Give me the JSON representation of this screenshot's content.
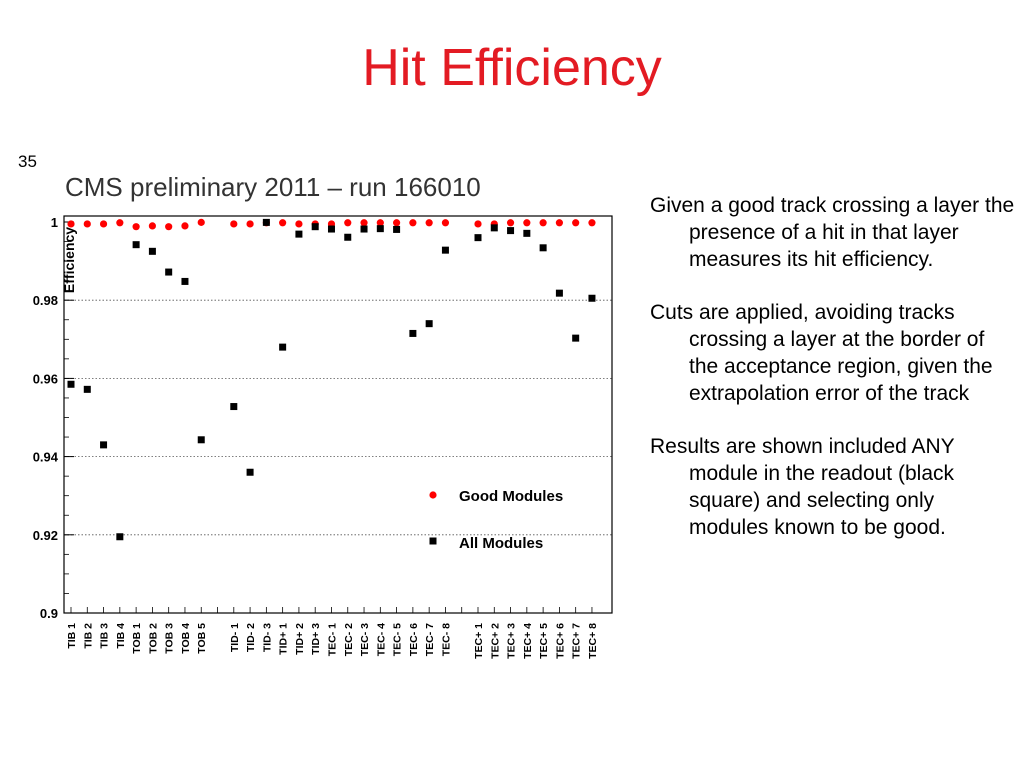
{
  "slide": {
    "title": "Hit Efficiency",
    "page_number": "35"
  },
  "bullets": [
    "Given a good track crossing a layer the presence of a hit in that layer measures its hit efficiency.",
    "Cuts are applied, avoiding tracks crossing a layer at the border of the acceptance region, given the extrapolation error of the track",
    "Results are shown included ANY module in the readout (black square) and selecting only modules known to be good."
  ],
  "chart_data": {
    "type": "scatter",
    "title": "CMS preliminary 2011 – run 166010",
    "ylabel": "Efficiency",
    "xlabel": "",
    "ylim": [
      0.9,
      1.0
    ],
    "yticks": [
      "1",
      "0.98",
      "0.96",
      "0.94",
      "0.92",
      "0.9"
    ],
    "ytick_values": [
      1.0,
      0.98,
      0.96,
      0.94,
      0.92,
      0.9
    ],
    "grid": true,
    "legend_position": "bottom-right",
    "categories": [
      "TIB 1",
      "TIB 2",
      "TIB 3",
      "TIB 4",
      "TOB 1",
      "TOB 2",
      "TOB 3",
      "TOB 4",
      "TOB 5",
      "",
      "TID- 1",
      "TID- 2",
      "TID- 3",
      "TID+ 1",
      "TID+ 2",
      "TID+ 3",
      "TEC- 1",
      "TEC- 2",
      "TEC- 3",
      "TEC- 4",
      "TEC- 5",
      "TEC- 6",
      "TEC- 7",
      "TEC- 8",
      "",
      "TEC+ 1",
      "TEC+ 2",
      "TEC+ 3",
      "TEC+ 4",
      "TEC+ 5",
      "TEC+ 6",
      "TEC+ 7",
      "TEC+ 8"
    ],
    "series": [
      {
        "name": "Good Modules",
        "marker": "circle",
        "color": "#ff0000",
        "values": [
          0.9995,
          0.9995,
          0.9995,
          0.9998,
          0.9988,
          0.999,
          0.9988,
          0.999,
          0.9999,
          null,
          0.9995,
          0.9995,
          0.9998,
          0.9998,
          0.9995,
          0.9995,
          0.9995,
          0.9998,
          0.9998,
          0.9998,
          0.9998,
          0.9998,
          0.9998,
          0.9998,
          null,
          0.9995,
          0.9995,
          0.9998,
          0.9998,
          0.9998,
          0.9998,
          0.9998,
          0.9998
        ]
      },
      {
        "name": "All Modules",
        "marker": "square",
        "color": "#000000",
        "values": [
          0.9585,
          0.9572,
          0.943,
          0.9195,
          0.9942,
          0.9925,
          0.9872,
          0.9848,
          0.9443,
          null,
          0.9528,
          0.936,
          0.9999,
          0.968,
          0.9969,
          0.9988,
          0.9982,
          0.9961,
          0.9982,
          0.9983,
          0.9981,
          0.9715,
          0.974,
          0.9928,
          null,
          0.996,
          0.9985,
          0.9978,
          0.9971,
          0.9934,
          0.9818,
          0.9703,
          0.9805
        ]
      }
    ]
  }
}
